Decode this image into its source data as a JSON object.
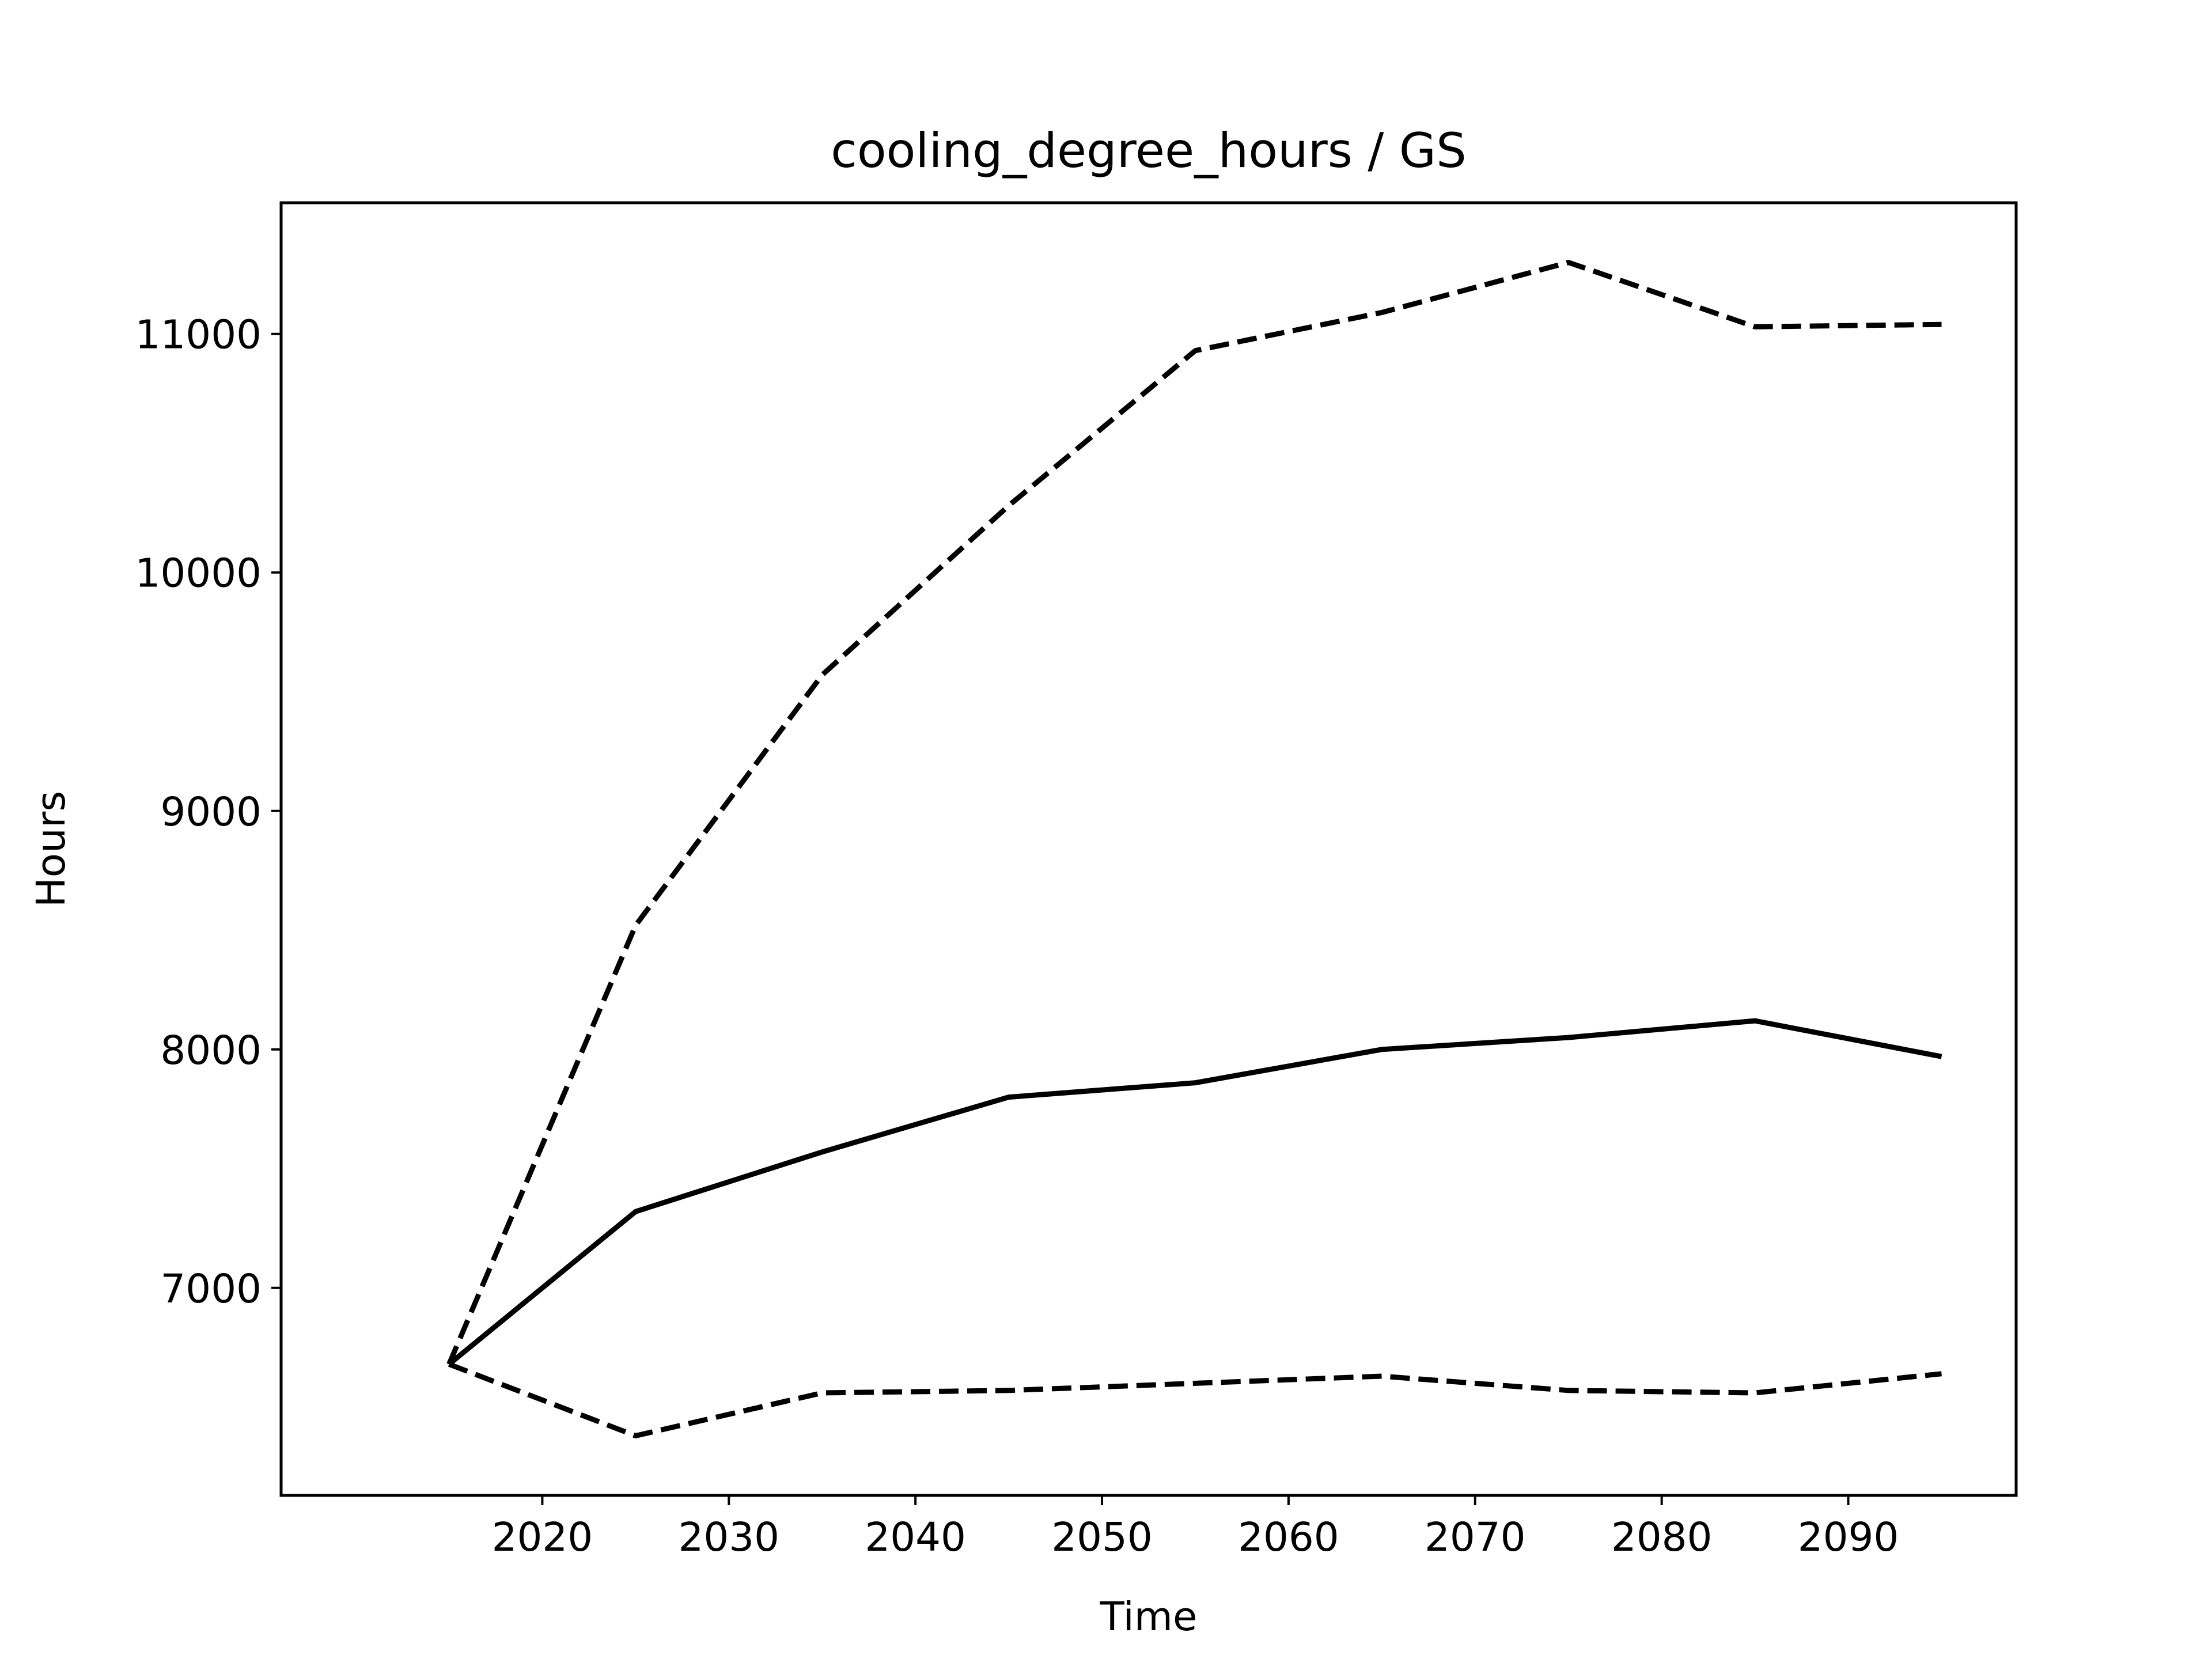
{
  "chart_data": {
    "type": "line",
    "title": "cooling_degree_hours / GS",
    "xlabel": "Time",
    "ylabel": "Hours",
    "x": [
      2015,
      2025,
      2035,
      2045,
      2055,
      2065,
      2075,
      2085,
      2095
    ],
    "xlim": [
      2006,
      2099
    ],
    "ylim": [
      6130,
      11550
    ],
    "xticks": [
      2020,
      2030,
      2040,
      2050,
      2060,
      2070,
      2080,
      2090
    ],
    "yticks": [
      7000,
      8000,
      9000,
      10000,
      11000
    ],
    "grid": false,
    "series": [
      {
        "style": "solid",
        "color": "#000000",
        "values": [
          6680,
          7320,
          7570,
          7800,
          7860,
          8000,
          8050,
          8120,
          7970
        ]
      },
      {
        "style": "dashed",
        "color": "#000000",
        "values": [
          6680,
          8520,
          9570,
          10280,
          10930,
          11090,
          11300,
          11030,
          11040
        ]
      },
      {
        "style": "dashed",
        "color": "#000000",
        "values": [
          6680,
          6380,
          6560,
          6570,
          6600,
          6630,
          6570,
          6560,
          6640
        ]
      }
    ]
  }
}
